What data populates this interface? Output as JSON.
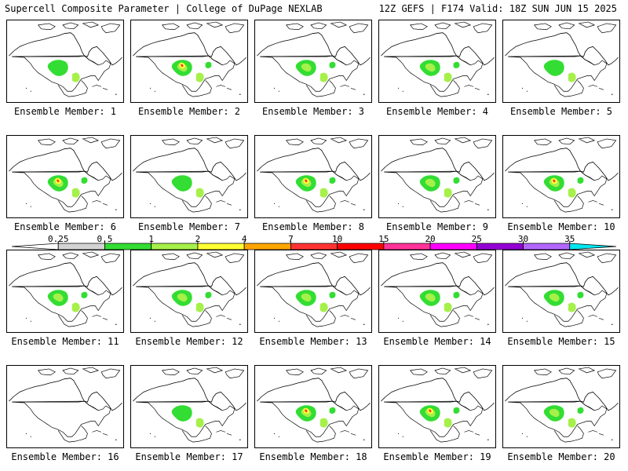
{
  "header": {
    "left": "Supercell Composite Parameter | College of DuPage NEXLAB",
    "right": "12Z GEFS | F174 Valid: 18Z SUN JUN 15 2025"
  },
  "colorbar": {
    "labels": [
      "0.25",
      "0.5",
      "1",
      "2",
      "4",
      "7",
      "10",
      "15",
      "20",
      "25",
      "30",
      "35"
    ],
    "colors": [
      "#ffffff",
      "#d3d3d3",
      "#33dd33",
      "#a6f04a",
      "#ffff33",
      "#ffa500",
      "#ff3333",
      "#ff0000",
      "#ff3399",
      "#ff00ff",
      "#9400d3",
      "#b266ff",
      "#00e5ee"
    ]
  },
  "panels": [
    {
      "label": "Ensemble Member: 1",
      "level": 1
    },
    {
      "label": "Ensemble Member: 2",
      "level": 3
    },
    {
      "label": "Ensemble Member: 3",
      "level": 2
    },
    {
      "label": "Ensemble Member: 4",
      "level": 2
    },
    {
      "label": "Ensemble Member: 5",
      "level": 1
    },
    {
      "label": "Ensemble Member: 6",
      "level": 3
    },
    {
      "label": "Ensemble Member: 7",
      "level": 1
    },
    {
      "label": "Ensemble Member: 8",
      "level": 3
    },
    {
      "label": "Ensemble Member: 9",
      "level": 2
    },
    {
      "label": "Ensemble Member: 10",
      "level": 3
    },
    {
      "label": "Ensemble Member: 11",
      "level": 2
    },
    {
      "label": "Ensemble Member: 12",
      "level": 2
    },
    {
      "label": "Ensemble Member: 13",
      "level": 2
    },
    {
      "label": "Ensemble Member: 14",
      "level": 2
    },
    {
      "label": "Ensemble Member: 15",
      "level": 2
    },
    {
      "label": "Ensemble Member: 16",
      "level": 0
    },
    {
      "label": "Ensemble Member: 17",
      "level": 1
    },
    {
      "label": "Ensemble Member: 18",
      "level": 3
    },
    {
      "label": "Ensemble Member: 19",
      "level": 3
    },
    {
      "label": "Ensemble Member: 20",
      "level": 2
    }
  ]
}
